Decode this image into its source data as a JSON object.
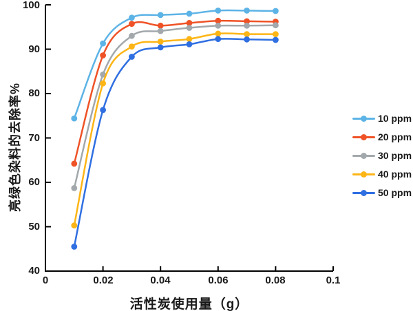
{
  "chart_data": {
    "type": "line",
    "title": "",
    "xlabel": "活性炭使用量（g）",
    "ylabel": "亮绿色染料的去除率%",
    "xlim": [
      0,
      0.1
    ],
    "ylim": [
      40,
      100
    ],
    "grid": false,
    "legend_position": "right",
    "axis_color": "#000000",
    "xticks": [
      "0",
      "0.02",
      "0.04",
      "0.06",
      "0.08",
      "0.1"
    ],
    "yticks": [
      "100",
      "90",
      "80",
      "70",
      "60",
      "50",
      "40"
    ],
    "x": [
      0.01,
      0.02,
      0.03,
      0.04,
      0.05,
      0.06,
      0.07,
      0.08
    ],
    "series": [
      {
        "name": "10 ppm",
        "color": "#5CB3E6",
        "values": [
          74.4,
          91.3,
          97.1,
          97.7,
          98.0,
          98.7,
          98.7,
          98.6
        ]
      },
      {
        "name": "20 ppm",
        "color": "#EF5226",
        "values": [
          64.2,
          88.6,
          95.7,
          95.3,
          95.9,
          96.4,
          96.3,
          96.2
        ]
      },
      {
        "name": "30 ppm",
        "color": "#A2A8AB",
        "values": [
          58.7,
          84.3,
          93.0,
          94.1,
          94.8,
          95.3,
          95.3,
          95.4
        ]
      },
      {
        "name": "40 ppm",
        "color": "#FDB515",
        "values": [
          50.3,
          82.3,
          90.6,
          91.7,
          92.3,
          93.5,
          93.4,
          93.4
        ]
      },
      {
        "name": "50 ppm",
        "color": "#2F6FE1",
        "values": [
          45.5,
          76.3,
          88.3,
          90.4,
          91.1,
          92.3,
          92.2,
          92.1
        ]
      }
    ]
  }
}
